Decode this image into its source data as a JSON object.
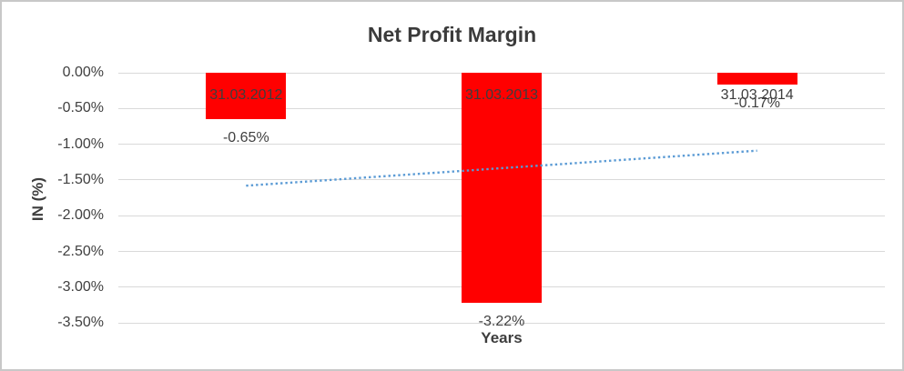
{
  "chart_data": {
    "type": "bar",
    "title": "Net Profit Margin",
    "xlabel": "Years",
    "ylabel": "IN (%)",
    "categories": [
      "31.03.2012",
      "31.03.2013",
      "31.03.2014"
    ],
    "values": [
      -0.65,
      -3.22,
      -0.17
    ],
    "value_labels": [
      "-0.65%",
      "-3.22%",
      "-0.17%"
    ],
    "y_ticks": [
      {
        "label": "0.00%",
        "value": 0
      },
      {
        "label": "-0.50%",
        "value": -0.5
      },
      {
        "label": "-1.00%",
        "value": -1.0
      },
      {
        "label": "-1.50%",
        "value": -1.5
      },
      {
        "label": "-2.00%",
        "value": -2.0
      },
      {
        "label": "-2.50%",
        "value": -2.5
      },
      {
        "label": "-3.00%",
        "value": -3.0
      },
      {
        "label": "-3.50%",
        "value": -3.5
      }
    ],
    "ylim": [
      0,
      -3.5
    ],
    "grid": true,
    "legend_position": "none",
    "bar_color": "#FF0000",
    "gridline_color": "#D9D9D9",
    "text_color": "#404040",
    "border_color": "#C8C8C8",
    "trendline": {
      "type": "linear",
      "style": "dotted",
      "color": "#5B9BD5",
      "start_value": -1.58,
      "end_value": -1.09
    }
  }
}
